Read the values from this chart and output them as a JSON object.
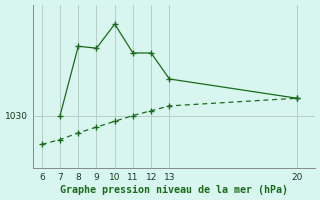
{
  "x_upper": [
    7,
    8,
    9,
    10,
    11,
    12,
    13,
    20
  ],
  "y_upper": [
    1030.0,
    1037.2,
    1037.0,
    1039.5,
    1036.5,
    1036.5,
    1033.8,
    1031.8
  ],
  "x_lower": [
    6,
    7,
    8,
    9,
    10,
    11,
    12,
    13,
    20
  ],
  "y_lower": [
    1027.0,
    1027.5,
    1028.2,
    1028.8,
    1029.4,
    1030.0,
    1030.5,
    1031.0,
    1031.8
  ],
  "ytick_values": [
    1030
  ],
  "ytick_labels": [
    "1030"
  ],
  "xtick_values": [
    6,
    7,
    8,
    9,
    10,
    11,
    12,
    13,
    20
  ],
  "xtick_labels": [
    "6",
    "7",
    "8",
    "9",
    "10",
    "11",
    "12",
    "13",
    "20"
  ],
  "xlabel": "Graphe pression niveau de la mer (hPa)",
  "line_color": "#1a6b1a",
  "background_color": "#d8f5f0",
  "grid_color": "#b0c8c0",
  "ylim": [
    1024.5,
    1041.5
  ],
  "xlim": [
    5.5,
    21.0
  ]
}
